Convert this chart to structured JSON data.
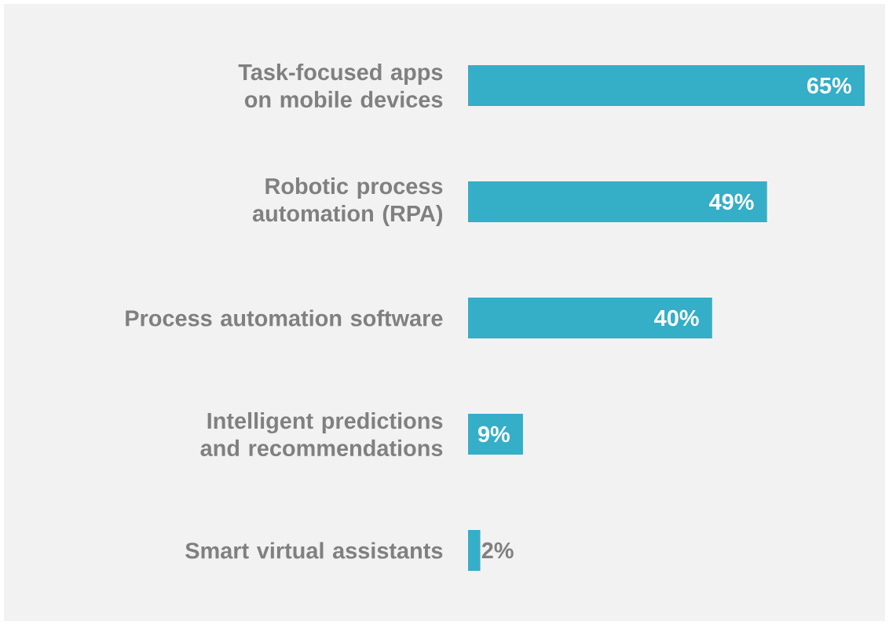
{
  "chart_data": {
    "type": "bar",
    "orientation": "horizontal",
    "categories": [
      "Task-focused apps on mobile devices",
      "Robotic process automation (RPA)",
      "Process automation software",
      "Intelligent predictions and recommendations",
      "Smart virtual assistants"
    ],
    "values": [
      65,
      49,
      40,
      9,
      2
    ],
    "value_labels": [
      "65%",
      "49%",
      "40%",
      "9%",
      "2%"
    ],
    "color": "#35aec8"
  }
}
